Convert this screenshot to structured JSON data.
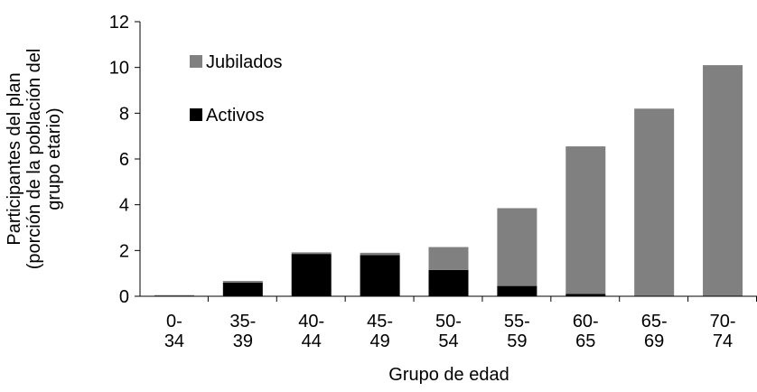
{
  "chart_data": {
    "type": "stacked_bar",
    "categories": [
      "0-\n34",
      "35-\n39",
      "40-\n44",
      "45-\n49",
      "50-\n54",
      "55-\n59",
      "60-\n65",
      "65-\n69",
      "70-\n74"
    ],
    "series": [
      {
        "name": "Activos",
        "color": "#000000",
        "values": [
          0.02,
          0.6,
          1.85,
          1.8,
          1.15,
          0.45,
          0.1,
          0,
          0
        ]
      },
      {
        "name": "Jubilados",
        "color": "#808080",
        "values": [
          0.03,
          0.07,
          0.07,
          0.1,
          1.0,
          3.4,
          6.45,
          8.2,
          10.1
        ]
      }
    ],
    "ylim": [
      0,
      12
    ],
    "yticks": [
      0,
      2,
      4,
      6,
      8,
      10,
      12
    ],
    "y_label": "Participantes del plan\n(porción de la población del\ngrupo etario)",
    "x_label": "Grupo de edad"
  }
}
